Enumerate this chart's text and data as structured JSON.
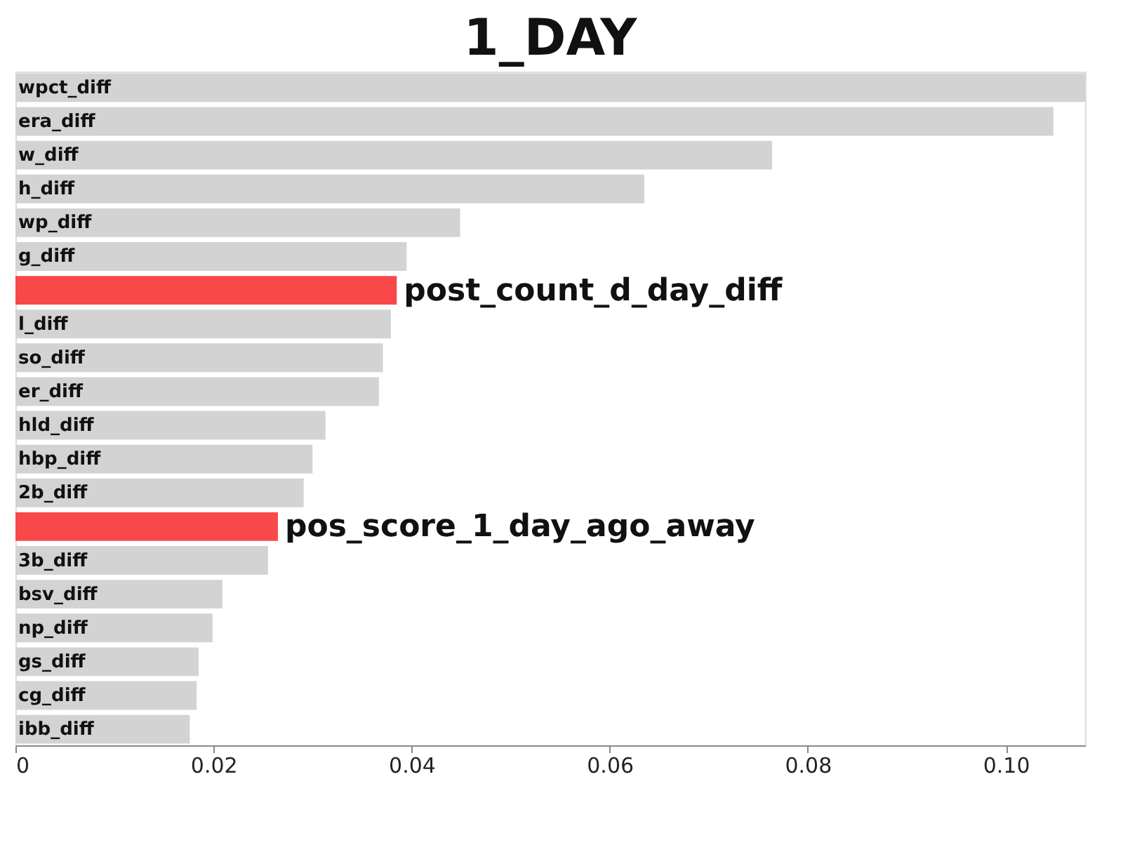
{
  "chart_data": {
    "type": "bar",
    "orientation": "horizontal",
    "title": "1_DAY",
    "categories": [
      "wpct_diff",
      "era_diff",
      "w_diff",
      "h_diff",
      "wp_diff",
      "g_diff",
      "post_count_d_day_diff",
      "l_diff",
      "so_diff",
      "er_diff",
      "hld_diff",
      "hbp_diff",
      "2b_diff",
      "pos_score_1_day_ago_away",
      "3b_diff",
      "bsv_diff",
      "np_diff",
      "gs_diff",
      "cg_diff",
      "ibb_diff"
    ],
    "values": [
      0.108,
      0.1048,
      0.0764,
      0.0635,
      0.0449,
      0.0395,
      0.0385,
      0.0379,
      0.0371,
      0.0367,
      0.0313,
      0.03,
      0.0291,
      0.0265,
      0.0255,
      0.0209,
      0.0199,
      0.0185,
      0.0183,
      0.0176
    ],
    "colors": [
      "#d3d3d3",
      "#d3d3d3",
      "#d3d3d3",
      "#d3d3d3",
      "#d3d3d3",
      "#d3d3d3",
      "#f9484a",
      "#d3d3d3",
      "#d3d3d3",
      "#d3d3d3",
      "#d3d3d3",
      "#d3d3d3",
      "#d3d3d3",
      "#f9484a",
      "#d3d3d3",
      "#d3d3d3",
      "#d3d3d3",
      "#d3d3d3",
      "#d3d3d3",
      "#d3d3d3"
    ],
    "xlim": [
      0,
      0.108
    ],
    "xticks": [
      0,
      0.02,
      0.04,
      0.06,
      0.08,
      {
        "value": 0.1,
        "label": "0.10"
      }
    ],
    "grid": false
  }
}
